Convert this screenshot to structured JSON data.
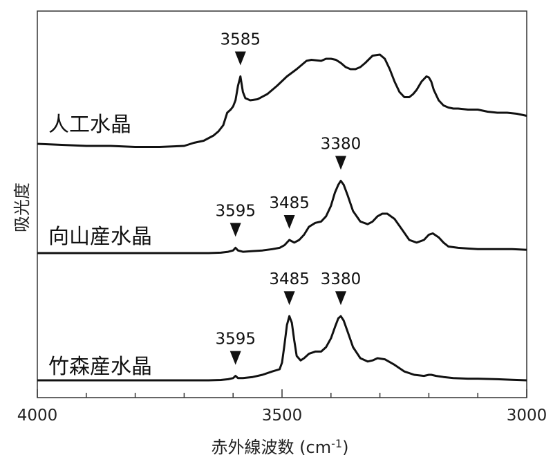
{
  "chart_data": {
    "type": "line",
    "xlabel": "赤外線波数 (cm-1)",
    "xlabel_main": "赤外線波数 (cm",
    "xlabel_sup": "-1",
    "xlabel_tail": ")",
    "ylabel": "吸光度",
    "xlim": [
      4000,
      3000
    ],
    "x_reversed": true,
    "x_ticks": [
      4000,
      3500,
      3000
    ],
    "x_tick_labels": [
      "4000",
      "3500",
      "3000"
    ],
    "x_minor_step": 100,
    "y_ticks_shown": false,
    "grid": false,
    "legend": "none",
    "series": [
      {
        "name": "人工水晶",
        "x": [
          4000,
          3950,
          3900,
          3850,
          3800,
          3750,
          3700,
          3680,
          3660,
          3640,
          3630,
          3620,
          3612,
          3605,
          3600,
          3595,
          3590,
          3585,
          3580,
          3575,
          3565,
          3550,
          3530,
          3510,
          3490,
          3470,
          3450,
          3440,
          3420,
          3410,
          3400,
          3390,
          3380,
          3370,
          3360,
          3350,
          3340,
          3330,
          3315,
          3300,
          3290,
          3280,
          3270,
          3260,
          3250,
          3240,
          3232,
          3225,
          3215,
          3205,
          3200,
          3195,
          3190,
          3180,
          3170,
          3160,
          3150,
          3140,
          3120,
          3100,
          3080,
          3060,
          3040,
          3020,
          3000
        ],
        "y": [
          0.0,
          -0.01,
          -0.02,
          -0.02,
          -0.03,
          -0.03,
          -0.02,
          0.01,
          0.03,
          0.08,
          0.12,
          0.18,
          0.3,
          0.33,
          0.36,
          0.42,
          0.56,
          0.65,
          0.5,
          0.44,
          0.42,
          0.43,
          0.48,
          0.56,
          0.65,
          0.72,
          0.8,
          0.81,
          0.8,
          0.82,
          0.82,
          0.81,
          0.78,
          0.74,
          0.72,
          0.72,
          0.74,
          0.78,
          0.85,
          0.86,
          0.82,
          0.72,
          0.6,
          0.5,
          0.45,
          0.45,
          0.48,
          0.52,
          0.6,
          0.65,
          0.64,
          0.6,
          0.52,
          0.42,
          0.37,
          0.35,
          0.34,
          0.34,
          0.33,
          0.33,
          0.31,
          0.3,
          0.3,
          0.29,
          0.27
        ]
      },
      {
        "name": "向山産水晶",
        "x": [
          4000,
          3900,
          3800,
          3700,
          3650,
          3625,
          3610,
          3600,
          3595,
          3590,
          3580,
          3560,
          3540,
          3520,
          3505,
          3495,
          3485,
          3475,
          3465,
          3455,
          3445,
          3432,
          3420,
          3410,
          3400,
          3392,
          3385,
          3380,
          3374,
          3366,
          3355,
          3340,
          3325,
          3315,
          3305,
          3295,
          3285,
          3270,
          3255,
          3240,
          3225,
          3210,
          3200,
          3192,
          3180,
          3170,
          3160,
          3140,
          3120,
          3100,
          3060,
          3030,
          3000
        ],
        "y": [
          0.0,
          0.0,
          0.0,
          0.0,
          0.0,
          0.003,
          0.01,
          0.02,
          0.04,
          0.02,
          0.01,
          0.015,
          0.02,
          0.03,
          0.04,
          0.06,
          0.1,
          0.08,
          0.1,
          0.14,
          0.2,
          0.23,
          0.24,
          0.28,
          0.36,
          0.46,
          0.52,
          0.55,
          0.52,
          0.44,
          0.32,
          0.24,
          0.22,
          0.24,
          0.28,
          0.3,
          0.3,
          0.26,
          0.18,
          0.1,
          0.08,
          0.1,
          0.14,
          0.15,
          0.12,
          0.08,
          0.05,
          0.04,
          0.035,
          0.03,
          0.03,
          0.03,
          0.025
        ]
      },
      {
        "name": "竹森産水晶",
        "x": [
          4000,
          3900,
          3800,
          3700,
          3650,
          3625,
          3610,
          3600,
          3595,
          3590,
          3580,
          3560,
          3540,
          3520,
          3505,
          3500,
          3495,
          3490,
          3485,
          3480,
          3475,
          3470,
          3462,
          3455,
          3445,
          3432,
          3420,
          3410,
          3400,
          3392,
          3385,
          3380,
          3374,
          3366,
          3355,
          3340,
          3325,
          3315,
          3305,
          3290,
          3270,
          3250,
          3230,
          3210,
          3200,
          3195,
          3185,
          3170,
          3150,
          3120,
          3100,
          3060,
          3030,
          3000
        ],
        "y": [
          0.0,
          0.0,
          0.0,
          0.0,
          0.0,
          0.003,
          0.01,
          0.02,
          0.04,
          0.02,
          0.02,
          0.03,
          0.05,
          0.08,
          0.1,
          0.16,
          0.32,
          0.5,
          0.58,
          0.52,
          0.36,
          0.22,
          0.18,
          0.2,
          0.24,
          0.26,
          0.26,
          0.3,
          0.38,
          0.48,
          0.56,
          0.58,
          0.54,
          0.44,
          0.3,
          0.2,
          0.17,
          0.18,
          0.2,
          0.19,
          0.14,
          0.08,
          0.05,
          0.04,
          0.05,
          0.05,
          0.04,
          0.03,
          0.02,
          0.015,
          0.015,
          0.01,
          0.005,
          0.0
        ]
      }
    ],
    "annotations": [
      {
        "series": 0,
        "x": 3585,
        "label": "3585",
        "y": 0.65
      },
      {
        "series": 1,
        "x": 3595,
        "label": "3595",
        "y": 0.04
      },
      {
        "series": 1,
        "x": 3485,
        "label": "3485",
        "y": 0.1
      },
      {
        "series": 1,
        "x": 3380,
        "label": "3380",
        "y": 0.55
      },
      {
        "series": 2,
        "x": 3595,
        "label": "3595",
        "y": 0.04
      },
      {
        "series": 2,
        "x": 3485,
        "label": "3485",
        "y": 0.58
      },
      {
        "series": 2,
        "x": 3380,
        "label": "3380",
        "y": 0.58
      }
    ]
  }
}
